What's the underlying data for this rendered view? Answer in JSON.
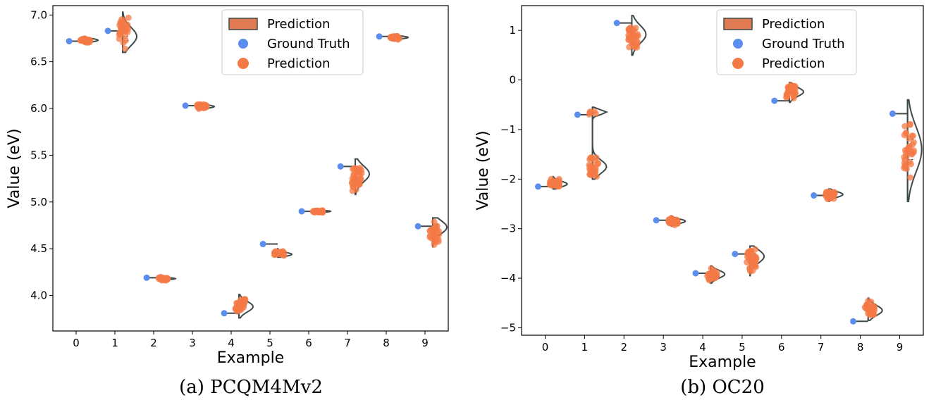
{
  "figure": {
    "colors": {
      "ground_truth": "#5b8def",
      "prediction": "#f47a45",
      "prediction_fill": "#e07b53",
      "violin_line": "#3e4a4a"
    }
  },
  "chart_data": [
    {
      "type": "scatter",
      "caption": "(a) PCQM4Mv2",
      "xlabel": "Example",
      "ylabel": "Value (eV)",
      "x_ticks": [
        0,
        1,
        2,
        3,
        4,
        5,
        6,
        7,
        8,
        9
      ],
      "y_ticks": [
        4.0,
        4.5,
        5.0,
        5.5,
        6.0,
        6.5,
        7.0
      ],
      "y_tick_labels": [
        "4.0",
        "4.5",
        "5.0",
        "5.5",
        "6.0",
        "6.5",
        "7.0"
      ],
      "xlim": [
        -0.6,
        9.6
      ],
      "ylim": [
        3.62,
        7.1
      ],
      "legend": {
        "placement": "top-center",
        "entries": [
          "Prediction",
          "Ground Truth",
          "Prediction"
        ]
      },
      "ground_truth": [
        6.72,
        6.83,
        4.19,
        6.03,
        3.81,
        4.55,
        4.9,
        5.38,
        6.77,
        4.74
      ],
      "prediction_median": [
        6.73,
        6.77,
        4.18,
        6.02,
        3.88,
        4.44,
        4.9,
        5.3,
        6.76,
        4.73
      ],
      "prediction_range": [
        [
          6.69,
          6.77
        ],
        [
          6.6,
          7.03
        ],
        [
          4.16,
          4.2
        ],
        [
          5.99,
          6.06
        ],
        [
          3.76,
          4.01
        ],
        [
          4.41,
          4.5
        ],
        [
          4.88,
          4.92
        ],
        [
          5.08,
          5.46
        ],
        [
          6.73,
          6.79
        ],
        [
          4.52,
          4.83
        ]
      ]
    },
    {
      "type": "scatter",
      "caption": "(b) OC20",
      "xlabel": "Example",
      "ylabel": "Value (eV)",
      "x_ticks": [
        0,
        1,
        2,
        3,
        4,
        5,
        6,
        7,
        8,
        9
      ],
      "y_ticks": [
        -5,
        -4,
        -3,
        -2,
        -1,
        0,
        1
      ],
      "y_tick_labels": [
        "−5",
        "−4",
        "−3",
        "−2",
        "−1",
        "0",
        "1"
      ],
      "xlim": [
        -0.6,
        9.6
      ],
      "ylim": [
        -5.15,
        1.5
      ],
      "legend": {
        "placement": "top-right",
        "entries": [
          "Prediction",
          "Ground Truth",
          "Prediction"
        ]
      },
      "ground_truth": [
        -2.15,
        -0.7,
        1.15,
        -2.83,
        -3.9,
        -3.51,
        -0.42,
        -2.33,
        -4.87,
        -0.68
      ],
      "prediction_median": [
        -2.1,
        -1.72,
        0.92,
        -2.85,
        -3.92,
        -3.56,
        -0.24,
        -2.31,
        -4.65,
        -1.4
      ],
      "prediction_range": [
        [
          -2.2,
          -1.95
        ],
        [
          -2.0,
          -0.55
        ],
        [
          0.5,
          1.3
        ],
        [
          -2.95,
          -2.75
        ],
        [
          -4.1,
          -3.75
        ],
        [
          -3.95,
          -3.35
        ],
        [
          -0.45,
          -0.05
        ],
        [
          -2.45,
          -2.2
        ],
        [
          -4.85,
          -4.4
        ],
        [
          -2.45,
          -0.4
        ]
      ],
      "prediction_clusters": [
        [],
        [
          [
            -1.95,
            -1.55
          ],
          [
            -0.72,
            -0.58
          ]
        ],
        [],
        [],
        [],
        [],
        [],
        [],
        [],
        []
      ]
    }
  ]
}
